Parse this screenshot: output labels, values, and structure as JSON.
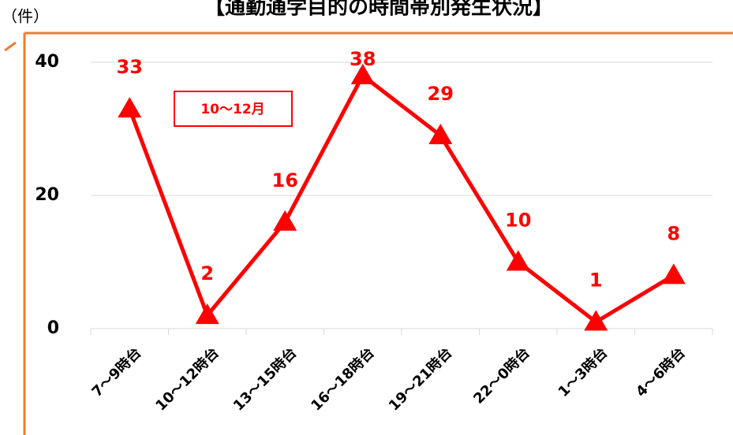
{
  "chart_data": {
    "type": "line",
    "title": "【通勤通学目的の時間帯別発生状況】",
    "y_axis_label": "（件）",
    "categories": [
      "7～9時台",
      "10～12時台",
      "13～15時台",
      "16～18時台",
      "19～21時台",
      "22～0時台",
      "1～3時台",
      "4～6時台"
    ],
    "series": [
      {
        "name": "10～12月",
        "color": "#ff0000",
        "values": [
          33,
          2,
          16,
          38,
          29,
          10,
          1,
          8
        ]
      }
    ],
    "ylim": [
      0,
      40
    ],
    "yticks": [
      0,
      20,
      40
    ],
    "grid": true,
    "marker": "triangle",
    "data_labels": true
  }
}
